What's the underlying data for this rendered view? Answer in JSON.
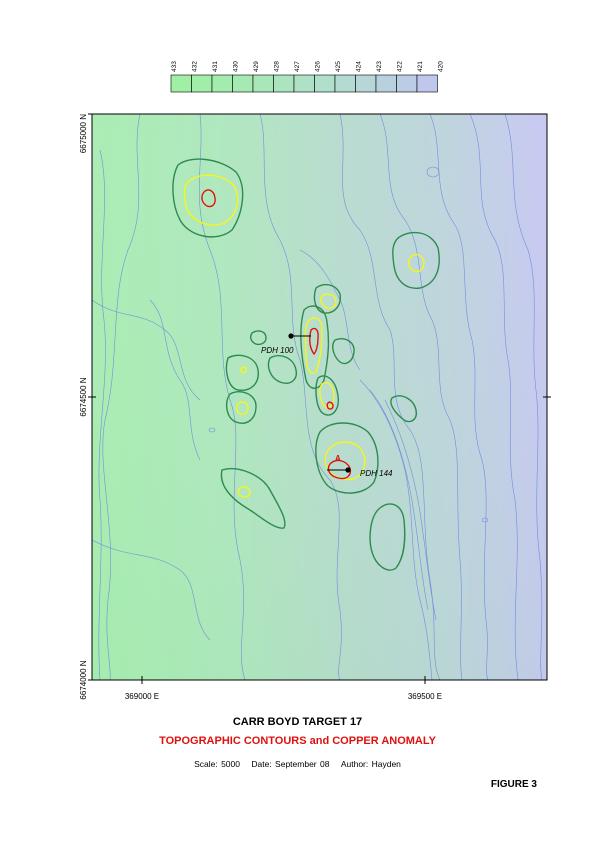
{
  "legend": {
    "levels": [
      "433",
      "432",
      "431",
      "430",
      "429",
      "428",
      "427",
      "426",
      "425",
      "424",
      "423",
      "422",
      "421",
      "420"
    ],
    "colors": [
      "#9ff0a3",
      "#a1eea8",
      "#a3ecad",
      "#a5eab2",
      "#a8e8b8",
      "#aae5bf",
      "#ade2c6",
      "#b0dfcc",
      "#b3dbd2",
      "#b6d6d8",
      "#b9d1df",
      "#bccce6",
      "#bfc7ed",
      "#c2c2f4"
    ]
  },
  "axes": {
    "y_top": "6675000 N",
    "y_mid": "6674500 N",
    "y_bottom": "6674000 N",
    "x_left": "369000 E",
    "x_right": "369500 E"
  },
  "drillholes": [
    {
      "label": "PDH 100"
    },
    {
      "label": "PDH 144"
    }
  ],
  "anomaly_label": "A",
  "colors": {
    "contour_line": "#6a7ee0",
    "anomaly_outer": "#2e8b4f",
    "anomaly_mid": "#f5f520",
    "anomaly_inner": "#e01010"
  },
  "title": "CARR BOYD TARGET 17",
  "subtitle": "TOPOGRAPHIC CONTOURS and COPPER ANOMALY",
  "meta": {
    "scale": "Scale: 5000",
    "date": "Date: September 08",
    "author": "Author: Hayden"
  },
  "figure_label": "FIGURE 3"
}
